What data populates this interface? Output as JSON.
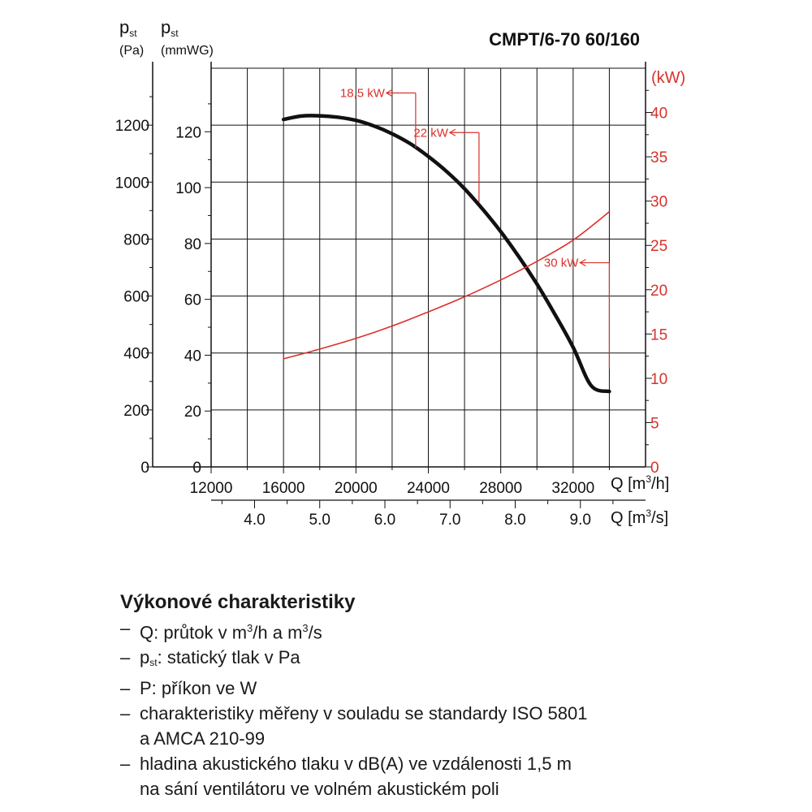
{
  "chart_data": {
    "type": "line",
    "title": "CMPT/6-70 60/160",
    "y_left_label": "p",
    "y_left_label_sub": "st",
    "y_left_unit": "(Pa)",
    "y_left2_label": "p",
    "y_left2_label_sub": "st",
    "y_left2_unit": "(mmWG)",
    "y_right_unit": "(kW)",
    "x_label": "Q [m³/h]",
    "x2_label": "Q [m³/s]",
    "xlim": [
      12000,
      36000
    ],
    "ylim_pa": [
      0,
      1400
    ],
    "ylim_kw": [
      0,
      45
    ],
    "x_ticks": [
      "12000",
      "16000",
      "20000",
      "24000",
      "28000",
      "32000"
    ],
    "x2_ticks": [
      "4.0",
      "5.0",
      "6.0",
      "7.0",
      "8.0",
      "9.0"
    ],
    "y_pa_ticks": [
      "0",
      "200",
      "400",
      "600",
      "800",
      "1000",
      "1200"
    ],
    "y_mmwg_ticks": [
      "0",
      "20",
      "40",
      "60",
      "80",
      "100",
      "120"
    ],
    "y_kw_ticks": [
      "0",
      "5",
      "10",
      "15",
      "20",
      "25",
      "30",
      "35",
      "40"
    ],
    "grid": true,
    "series": [
      {
        "color": "#111111",
        "axis": "pressure_pa",
        "x": [
          16000,
          17000,
          18000,
          19000,
          20000,
          21000,
          22000,
          23000,
          24000,
          25000,
          26000,
          27000,
          28000,
          29000,
          30000,
          31000,
          32000,
          33000,
          34000
        ],
        "y": [
          1220,
          1232,
          1233,
          1228,
          1217,
          1197,
          1170,
          1135,
          1090,
          1038,
          977,
          905,
          826,
          738,
          642,
          535,
          420,
          285,
          265
        ]
      },
      {
        "color": "#d9312b",
        "axis": "power_kw",
        "x": [
          16000,
          18000,
          20000,
          22000,
          24000,
          26000,
          28000,
          30000,
          32000,
          34000
        ],
        "y": [
          12.2,
          13.3,
          14.5,
          15.9,
          17.5,
          19.2,
          21.1,
          23.2,
          25.6,
          28.8
        ]
      }
    ],
    "annotations": [
      {
        "text": "18,5 kW",
        "x": 23300,
        "y_pa": 1120,
        "y_top_pa": 1313
      },
      {
        "text": "22 kW",
        "x": 26800,
        "y_pa": 930,
        "y_top_pa": 1174
      },
      {
        "text": "30 kW",
        "x": 34000,
        "y_pa": 345,
        "y_top_pa": 717
      }
    ]
  },
  "notes": {
    "heading": "Výkonové charakteristiky",
    "items": [
      {
        "pre": "Q: průtok v m",
        "sup": "3",
        "mid": "/h a m",
        "sup2": "3",
        "post": "/s"
      },
      {
        "pre": "p",
        "sub": "st",
        "post": ": statický tlak v Pa"
      },
      {
        "text": "P: příkon ve W"
      },
      {
        "text": "charakteristiky měřeny v souladu se standardy ISO 5801"
      },
      {
        "text": "a AMCA 210-99",
        "continuation": true
      },
      {
        "text": "hladina akustického tlaku v dB(A) ve vzdálenosti 1,5 m"
      },
      {
        "text": "na sání ventilátoru ve volném akustickém poli",
        "continuation": true
      }
    ]
  },
  "colors": {
    "axis": "#111111",
    "grid": "#111111",
    "power": "#d9312b"
  }
}
